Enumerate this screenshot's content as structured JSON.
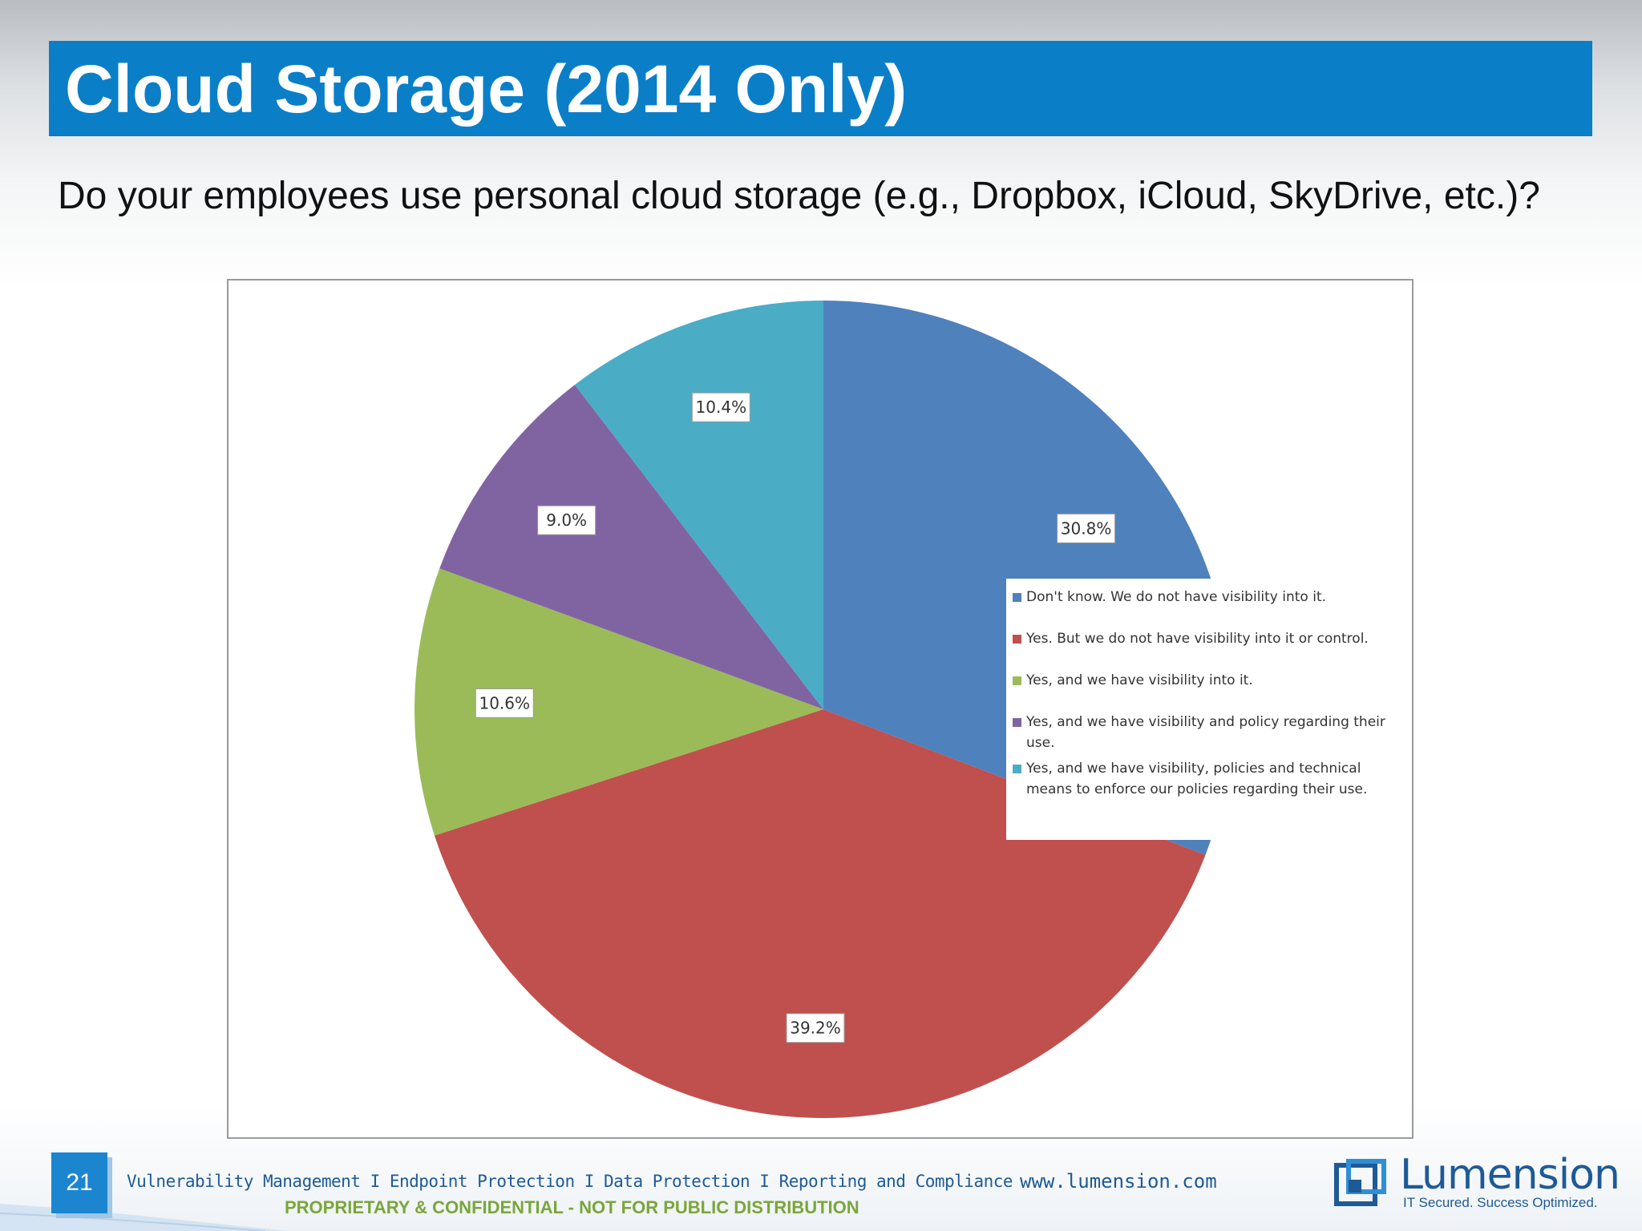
{
  "slide": {
    "title": "Cloud Storage (2014 Only)",
    "question": "Do your employees use personal cloud storage (e.g., Dropbox, iCloud, SkyDrive, etc.)?",
    "page_number": "21"
  },
  "footer": {
    "tagline": "Vulnerability Management I Endpoint Protection I Data Protection I Reporting and Compliance",
    "confidential": "PROPRIETARY & CONFIDENTIAL - NOT FOR PUBLIC DISTRIBUTION",
    "url": "www.lumension.com",
    "logo_name": "Lumension",
    "logo_tagline": "IT Secured. Success Optimized."
  },
  "colors": {
    "title_bar": "#0a7fc8",
    "accent_green": "#7aa63a",
    "brand_blue": "#1e5a96"
  },
  "chart_data": {
    "type": "pie",
    "start_angle": "12 o'clock",
    "direction": "clockwise",
    "legend_position": "right",
    "slices": [
      {
        "label": "Don't know. We do not have visibility into it.",
        "value": 30.8,
        "value_label": "30.8%",
        "color": "#4f81bd"
      },
      {
        "label": "Yes. But we do not have visibility into it or control.",
        "value": 39.2,
        "value_label": "39.2%",
        "color": "#c0504d"
      },
      {
        "label": "Yes, and we have visibility into it.",
        "value": 10.6,
        "value_label": "10.6%",
        "color": "#9bbb59"
      },
      {
        "label": "Yes, and we have visibility and policy regarding their use.",
        "value": 9.0,
        "value_label": "9.0%",
        "color": "#8064a2"
      },
      {
        "label": "Yes, and we have visibility, policies and technical means to enforce our policies regarding their use.",
        "value": 10.4,
        "value_label": "10.4%",
        "color": "#4bacc6"
      }
    ]
  }
}
